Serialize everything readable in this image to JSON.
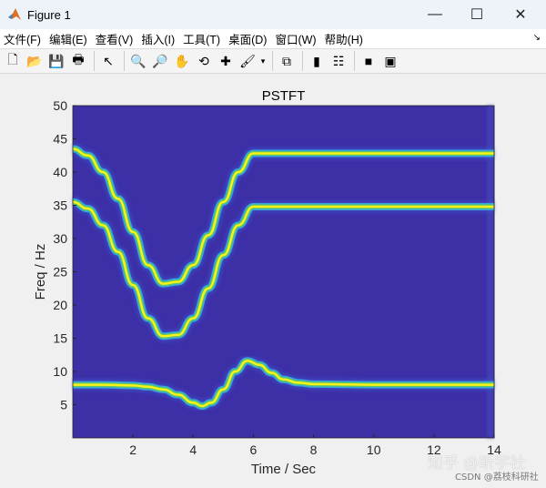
{
  "window": {
    "title": "Figure 1",
    "minimize": "—",
    "maximize": "☐",
    "close": "✕"
  },
  "menu": [
    "文件(F)",
    "编辑(E)",
    "查看(V)",
    "插入(I)",
    "工具(T)",
    "桌面(D)",
    "窗口(W)",
    "帮助(H)"
  ],
  "toolbar": [
    {
      "name": "new-figure-icon",
      "glyph": "🗋"
    },
    {
      "name": "open-file-icon",
      "glyph": "📂"
    },
    {
      "name": "save-icon",
      "glyph": "💾"
    },
    {
      "name": "print-icon",
      "glyph": "🖶"
    },
    {
      "sep": true
    },
    {
      "name": "pointer-icon",
      "glyph": "↖"
    },
    {
      "sep": true
    },
    {
      "name": "zoom-in-icon",
      "glyph": "🔍"
    },
    {
      "name": "zoom-out-icon",
      "glyph": "🔎"
    },
    {
      "name": "pan-hand-icon",
      "glyph": "✋"
    },
    {
      "name": "rotate-3d-icon",
      "glyph": "⟲"
    },
    {
      "name": "data-cursor-icon",
      "glyph": "✚"
    },
    {
      "name": "brush-icon",
      "glyph": "🖌"
    },
    {
      "name": "brush-dropdown-icon",
      "glyph": "▾"
    },
    {
      "sep": true
    },
    {
      "name": "link-plot-icon",
      "glyph": "⧉"
    },
    {
      "sep": true
    },
    {
      "name": "colorbar-icon",
      "glyph": "▮"
    },
    {
      "name": "legend-icon",
      "glyph": "☷"
    },
    {
      "sep": true
    },
    {
      "name": "hide-plot-tools-icon",
      "glyph": "■"
    },
    {
      "name": "show-plot-tools-icon",
      "glyph": "▣"
    }
  ],
  "watermark": {
    "main": "知乎 @昕宇社",
    "sub": "CSDN @荔枝科研社"
  },
  "chart_data": {
    "type": "heatmap",
    "title": "PSTFT",
    "xlabel": "Time / Sec",
    "ylabel": "Freq / Hz",
    "xlim": [
      0,
      14
    ],
    "ylim": [
      0,
      50
    ],
    "xticks": [
      2,
      4,
      6,
      8,
      10,
      12,
      14
    ],
    "yticks": [
      5,
      10,
      15,
      20,
      25,
      30,
      35,
      40,
      45,
      50
    ],
    "colormap": "parula",
    "colors": {
      "background": "#3d2fa6",
      "edge": "#37a6d8",
      "mid": "#5cc863",
      "core": "#f9f21a"
    },
    "series": [
      {
        "t": [
          0,
          0.5,
          1,
          1.5,
          2,
          2.5,
          3,
          3.5,
          4,
          4.5,
          5,
          5.5,
          6,
          7,
          8,
          10,
          12,
          14
        ],
        "f": [
          43.5,
          42.5,
          40,
          36,
          31,
          26,
          23.2,
          23.5,
          26,
          30.5,
          35.5,
          40,
          42.8,
          42.8,
          42.8,
          42.8,
          42.8,
          42.8
        ]
      },
      {
        "t": [
          0,
          0.5,
          1,
          1.5,
          2,
          2.5,
          3,
          3.5,
          4,
          4.5,
          5,
          5.5,
          6,
          7,
          8,
          10,
          12,
          14
        ],
        "f": [
          35.5,
          34.5,
          32,
          28,
          23,
          18,
          15.3,
          15.5,
          18,
          22.5,
          27.5,
          32,
          34.8,
          34.8,
          34.8,
          34.8,
          34.8,
          34.8
        ]
      },
      {
        "t": [
          0,
          1,
          2,
          2.5,
          3,
          3.5,
          4,
          4.3,
          4.6,
          5,
          5.4,
          5.8,
          6.2,
          6.6,
          7,
          7.5,
          8,
          10,
          12,
          14
        ],
        "f": [
          8,
          8,
          7.9,
          7.7,
          7.3,
          6.5,
          5.3,
          4.8,
          5.3,
          7.3,
          10,
          11.6,
          11,
          9.8,
          8.8,
          8.3,
          8.1,
          8,
          8,
          8
        ]
      }
    ]
  }
}
